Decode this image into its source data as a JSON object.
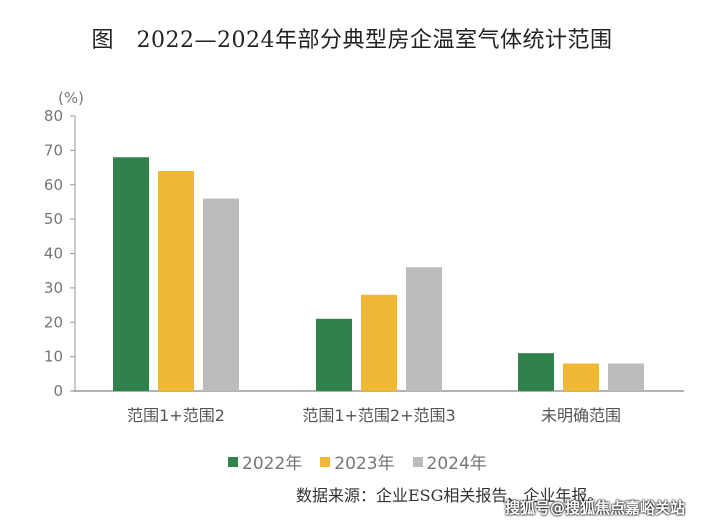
{
  "title": "图　2022—2024年部分典型房企温室气体统计范围",
  "chart_data": {
    "type": "bar",
    "title": "图　2022—2024年部分典型房企温室气体统计范围",
    "ylabel": "(%)",
    "ylim": [
      0,
      80
    ],
    "yticks": [
      0,
      10,
      20,
      30,
      40,
      50,
      60,
      70,
      80
    ],
    "categories": [
      "范围1+范围2",
      "范围1+范围2+范围3",
      "未明确范围"
    ],
    "series": [
      {
        "name": "2022年",
        "color": "#31824a",
        "values": [
          68,
          21,
          11
        ]
      },
      {
        "name": "2023年",
        "color": "#efb935",
        "values": [
          64,
          28,
          8
        ]
      },
      {
        "name": "2024年",
        "color": "#bcbcbe",
        "values": [
          56,
          36,
          8
        ]
      }
    ],
    "grid": false,
    "legend": "bottom"
  },
  "source": "数据来源：企业ESG相关报告、企业年报。",
  "watermark": "搜狐号@搜狐焦点嘉峪关站"
}
